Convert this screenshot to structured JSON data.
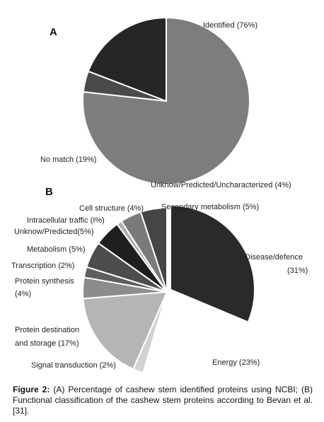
{
  "chart_data": [
    {
      "type": "pie",
      "panel": "A",
      "slices": [
        {
          "label": "Identified (76%)",
          "value": 76,
          "color": "#7d7d7d"
        },
        {
          "label": "Unknow/Predicted/Uncharacterized (4%)",
          "value": 4,
          "color": "#4a4a4a"
        },
        {
          "label": "No match (19%)",
          "value": 19,
          "color": "#262626"
        }
      ]
    },
    {
      "type": "pie",
      "panel": "B",
      "slices": [
        {
          "label": "Disease/defence (31%)",
          "value": 31,
          "color": "#2a2a2a",
          "line1": "Disease/defence",
          "line2": "(31%)",
          "explode": true
        },
        {
          "label": "Energy (23%)",
          "value": 23,
          "color": "#ffffff"
        },
        {
          "label": "Signal transduction (2%)",
          "value": 2,
          "color": "#d2d2d2"
        },
        {
          "label": "Protein destination and storage (17%)",
          "value": 17,
          "color": "#b5b5b5",
          "line1": "Protein destination",
          "line2": "and storage (17%)"
        },
        {
          "label": "Protein synthesis (4%)",
          "value": 4,
          "color": "#8c8c8c",
          "line1": "Protein synthesis",
          "line2": "(4%)"
        },
        {
          "label": "Transcription (2%)",
          "value": 2,
          "color": "#5e5e5e"
        },
        {
          "label": "Metabolism (5%)",
          "value": 5,
          "color": "#4d4d4d"
        },
        {
          "label": "Unknow/Predicted(5%)",
          "value": 5,
          "color": "#1f1f1f"
        },
        {
          "label": "Intracellular traffic (I%)",
          "value": 1,
          "color": "#b0b0b0"
        },
        {
          "label": "Cell structure (4%)",
          "value": 4,
          "color": "#7a7a7a"
        },
        {
          "label": "Secondary metabolism (5%)",
          "value": 5,
          "color": "#454545"
        }
      ]
    }
  ],
  "caption": {
    "lead": "Figure 2:",
    "text": " (A) Percentage of cashew stem identified proteins using NCBI; (B) Functional classification of the cashew stem proteins according to Bevan et al. [31]."
  }
}
